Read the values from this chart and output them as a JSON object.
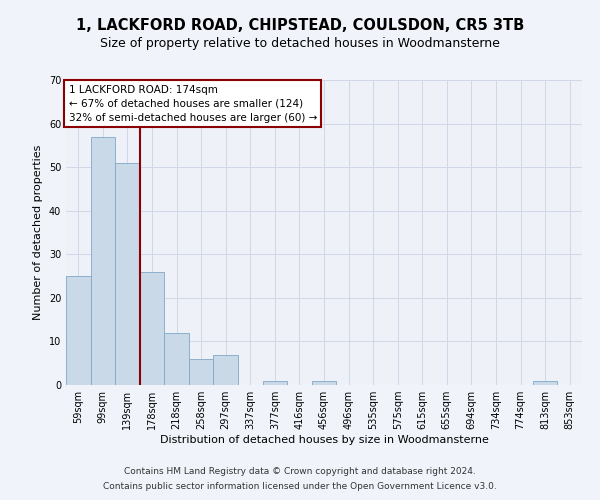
{
  "title": "1, LACKFORD ROAD, CHIPSTEAD, COULSDON, CR5 3TB",
  "subtitle": "Size of property relative to detached houses in Woodmansterne",
  "xlabel": "Distribution of detached houses by size in Woodmansterne",
  "ylabel": "Number of detached properties",
  "bins": [
    "59sqm",
    "99sqm",
    "139sqm",
    "178sqm",
    "218sqm",
    "258sqm",
    "297sqm",
    "337sqm",
    "377sqm",
    "416sqm",
    "456sqm",
    "496sqm",
    "535sqm",
    "575sqm",
    "615sqm",
    "655sqm",
    "694sqm",
    "734sqm",
    "774sqm",
    "813sqm",
    "853sqm"
  ],
  "values": [
    25,
    57,
    51,
    26,
    12,
    6,
    7,
    0,
    1,
    0,
    1,
    0,
    0,
    0,
    0,
    0,
    0,
    0,
    0,
    1,
    0
  ],
  "bar_color": "#c9d9e8",
  "bar_edge_color": "#7fa8c9",
  "vline_x_index": 2.5,
  "vline_color": "#8b0000",
  "annotation_text": "1 LACKFORD ROAD: 174sqm\n← 67% of detached houses are smaller (124)\n32% of semi-detached houses are larger (60) →",
  "annotation_box_facecolor": "#ffffff",
  "annotation_box_edgecolor": "#8b0000",
  "ylim": [
    0,
    70
  ],
  "yticks": [
    0,
    10,
    20,
    30,
    40,
    50,
    60,
    70
  ],
  "grid_color": "#d0d8e8",
  "plot_bg_color": "#eef2f8",
  "fig_bg_color": "#f0f4fa",
  "footer1": "Contains HM Land Registry data © Crown copyright and database right 2024.",
  "footer2": "Contains public sector information licensed under the Open Government Licence v3.0.",
  "title_fontsize": 10.5,
  "subtitle_fontsize": 9,
  "ylabel_fontsize": 8,
  "xlabel_fontsize": 8,
  "tick_fontsize": 7,
  "annotation_fontsize": 7.5,
  "footer_fontsize": 6.5
}
